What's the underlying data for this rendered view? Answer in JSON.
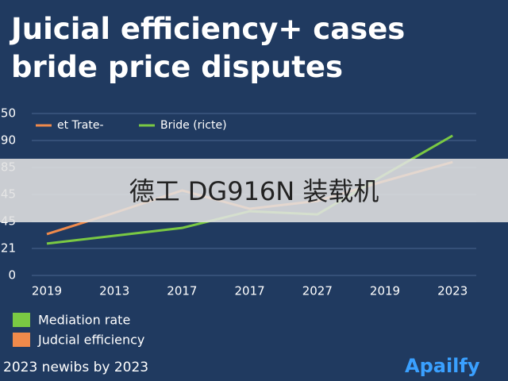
{
  "chart_data": {
    "type": "line",
    "title": "Juicial efficiency+ cases bride price disputes",
    "categories": [
      "2019",
      "2013",
      "2017",
      "2017",
      "2027",
      "2019",
      "2023"
    ],
    "series": [
      {
        "name": "et Trate-",
        "color": "#f08a4b",
        "values": [
          1.53,
          2.32,
          3.15,
          2.47,
          2.76,
          3.5,
          4.2
        ]
      },
      {
        "name": "Bride (ricte)",
        "color": "#7ac943",
        "values": [
          1.18,
          1.47,
          1.76,
          2.38,
          2.26,
          3.74,
          5.18
        ]
      }
    ],
    "ylim": [
      0,
      6
    ],
    "yticks": [
      0,
      {
        "value": 1,
        "label": "21"
      },
      {
        "value": 2,
        "label": "45"
      },
      {
        "value": 3,
        "label": "45"
      },
      {
        "value": 4,
        "label": "85"
      },
      {
        "value": 5,
        "label": "90"
      },
      {
        "value": 6,
        "label": "50"
      }
    ],
    "grid": true,
    "legend_bottom": [
      {
        "label": "Mediation rate",
        "color": "#7ac943"
      },
      {
        "label": "Judcial efficiency",
        "color": "#f08a4b"
      }
    ],
    "footer": "2023 newibs by 2023",
    "brand": "Apailfy",
    "overlay": "德工 DG916N 装载机"
  }
}
